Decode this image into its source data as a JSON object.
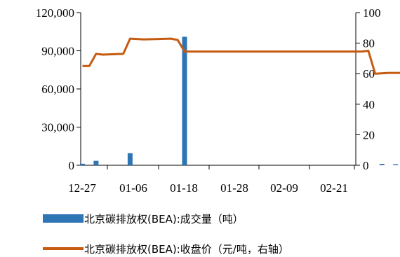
{
  "chart_data": {
    "type": "bar+line",
    "x_tick_labels": [
      "12-27",
      "01-06",
      "01-18",
      "01-28",
      "02-09",
      "02-21"
    ],
    "left_axis": {
      "ticks": [
        "0",
        "30,000",
        "60,000",
        "90,000",
        "120,000"
      ],
      "ylim": [
        0,
        120000
      ]
    },
    "right_axis": {
      "ticks": [
        "0",
        "20",
        "40",
        "60",
        "80",
        "100"
      ],
      "ylim": [
        0,
        100
      ]
    },
    "series": [
      {
        "name": "北京碳排放权(BEA):成交量（吨）",
        "type": "bar",
        "axis": "left",
        "color": "#2e75b6",
        "points": [
          {
            "date": "2022-12-27",
            "value": 1200
          },
          {
            "date": "2022-12-29",
            "value": 3500
          },
          {
            "date": "2023-01-03",
            "value": 9500
          },
          {
            "date": "2023-01-11",
            "value": 101000
          },
          {
            "date": "2023-02-09",
            "value": 1000
          },
          {
            "date": "2023-02-11",
            "value": 800
          }
        ]
      },
      {
        "name": "北京碳排放权(BEA):收盘价（元/吨，右轴）",
        "type": "line",
        "axis": "right",
        "color": "#c55a11",
        "points": [
          {
            "date": "2022-12-27",
            "value": 65
          },
          {
            "date": "2022-12-28",
            "value": 65
          },
          {
            "date": "2022-12-29",
            "value": 73
          },
          {
            "date": "2022-12-30",
            "value": 72.5
          },
          {
            "date": "2023-01-02",
            "value": 73
          },
          {
            "date": "2023-01-03",
            "value": 83
          },
          {
            "date": "2023-01-05",
            "value": 82.5
          },
          {
            "date": "2023-01-09",
            "value": 83
          },
          {
            "date": "2023-01-10",
            "value": 82
          },
          {
            "date": "2023-01-11",
            "value": 74.5
          },
          {
            "date": "2023-02-06",
            "value": 74.5
          },
          {
            "date": "2023-02-07",
            "value": 75
          },
          {
            "date": "2023-02-08",
            "value": 60
          },
          {
            "date": "2023-02-10",
            "value": 60.5
          },
          {
            "date": "2023-02-26",
            "value": 60.5
          }
        ]
      }
    ],
    "legend_position": "bottom",
    "grid": false
  }
}
